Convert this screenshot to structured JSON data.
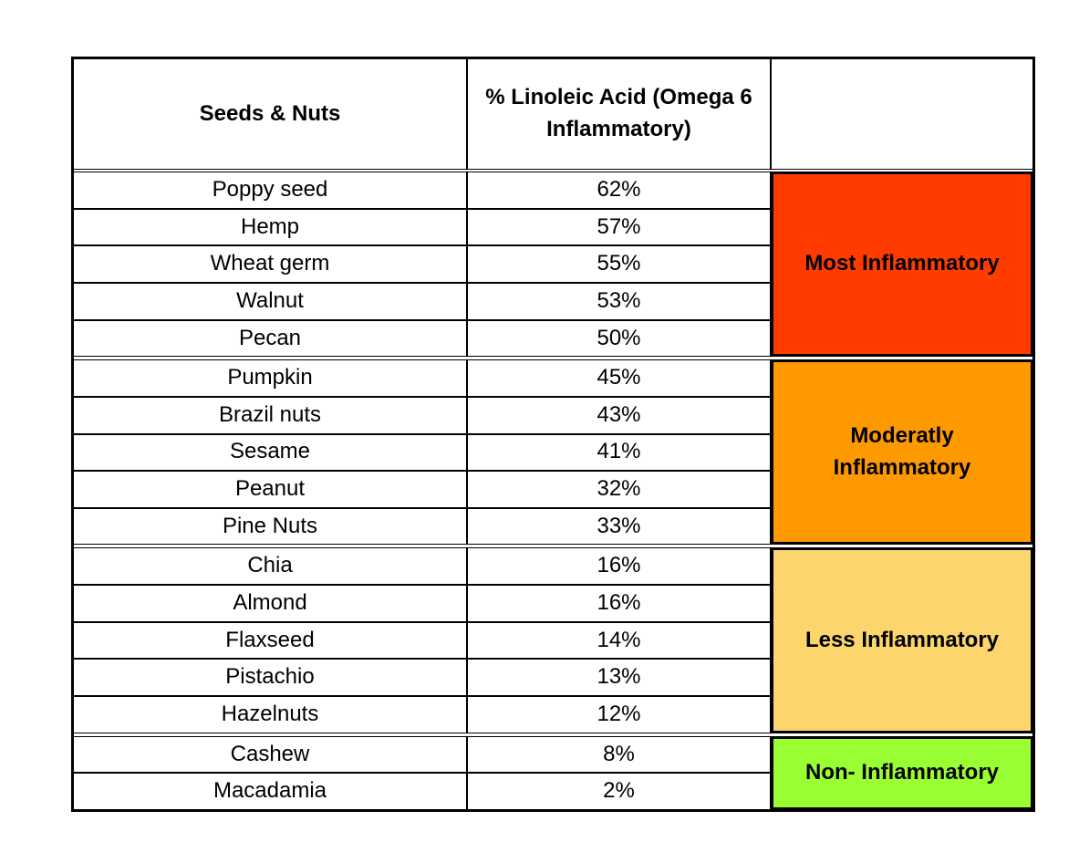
{
  "header": {
    "columns": [
      "Seeds & Nuts",
      "% Linoleic Acid (Omega 6 Inflammatory)"
    ]
  },
  "groups": [
    {
      "label": "Most Inflammatory",
      "color": "#ff3b00",
      "rows": [
        [
          "Poppy seed",
          "62%"
        ],
        [
          "Hemp",
          "57%"
        ],
        [
          "Wheat germ",
          "55%"
        ],
        [
          "Walnut",
          "53%"
        ],
        [
          "Pecan",
          "50%"
        ]
      ]
    },
    {
      "label": "Moderatly Inflammatory",
      "color": "#ff9900",
      "rows": [
        [
          "Pumpkin",
          "45%"
        ],
        [
          "Brazil nuts",
          "43%"
        ],
        [
          "Sesame",
          "41%"
        ],
        [
          "Peanut",
          "32%"
        ],
        [
          "Pine Nuts",
          "33%"
        ]
      ]
    },
    {
      "label": "Less Inflammatory",
      "color": "#fcd66c",
      "rows": [
        [
          "Chia",
          "16%"
        ],
        [
          "Almond",
          "16%"
        ],
        [
          "Flaxseed",
          "14%"
        ],
        [
          "Pistachio",
          "13%"
        ],
        [
          "Hazelnuts",
          "12%"
        ]
      ]
    },
    {
      "label": "Non- Inflammatory",
      "color": "#99ff33",
      "rows": [
        [
          "Cashew",
          "8%"
        ],
        [
          "Macadamia",
          "2%"
        ]
      ]
    }
  ]
}
